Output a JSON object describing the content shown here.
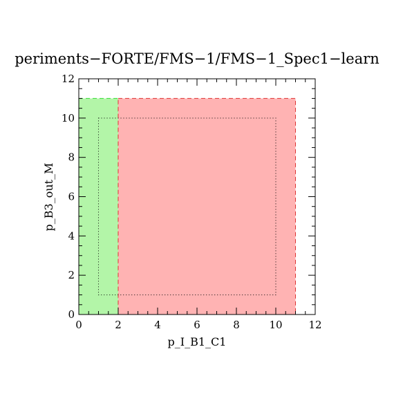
{
  "chart_data": {
    "type": "area",
    "title": "periments−FORTE/FMS−1/FMS−1_Spec1−learn",
    "xlabel": "p_I_B1_C1",
    "ylabel": "p_B3_out_M",
    "xlim": [
      0,
      12
    ],
    "ylim": [
      0,
      12
    ],
    "xticks": [
      "0",
      "2",
      "4",
      "6",
      "8",
      "10",
      "12"
    ],
    "yticks": [
      "0",
      "2",
      "4",
      "6",
      "8",
      "10",
      "12"
    ],
    "grid": false,
    "legend": "none",
    "regions": [
      {
        "x0": 0,
        "x1": 2,
        "y0": 0,
        "y1": 11,
        "fill": "#b3f5a8",
        "stroke": "#33dd33"
      },
      {
        "x0": 2,
        "x1": 11,
        "y0": 0,
        "y1": 11,
        "fill": "#ffb3b3",
        "stroke": "#dd3333"
      }
    ],
    "dotted_box": {
      "x0": 1,
      "x1": 10,
      "y0": 1,
      "y1": 10,
      "stroke": "#000000"
    }
  }
}
